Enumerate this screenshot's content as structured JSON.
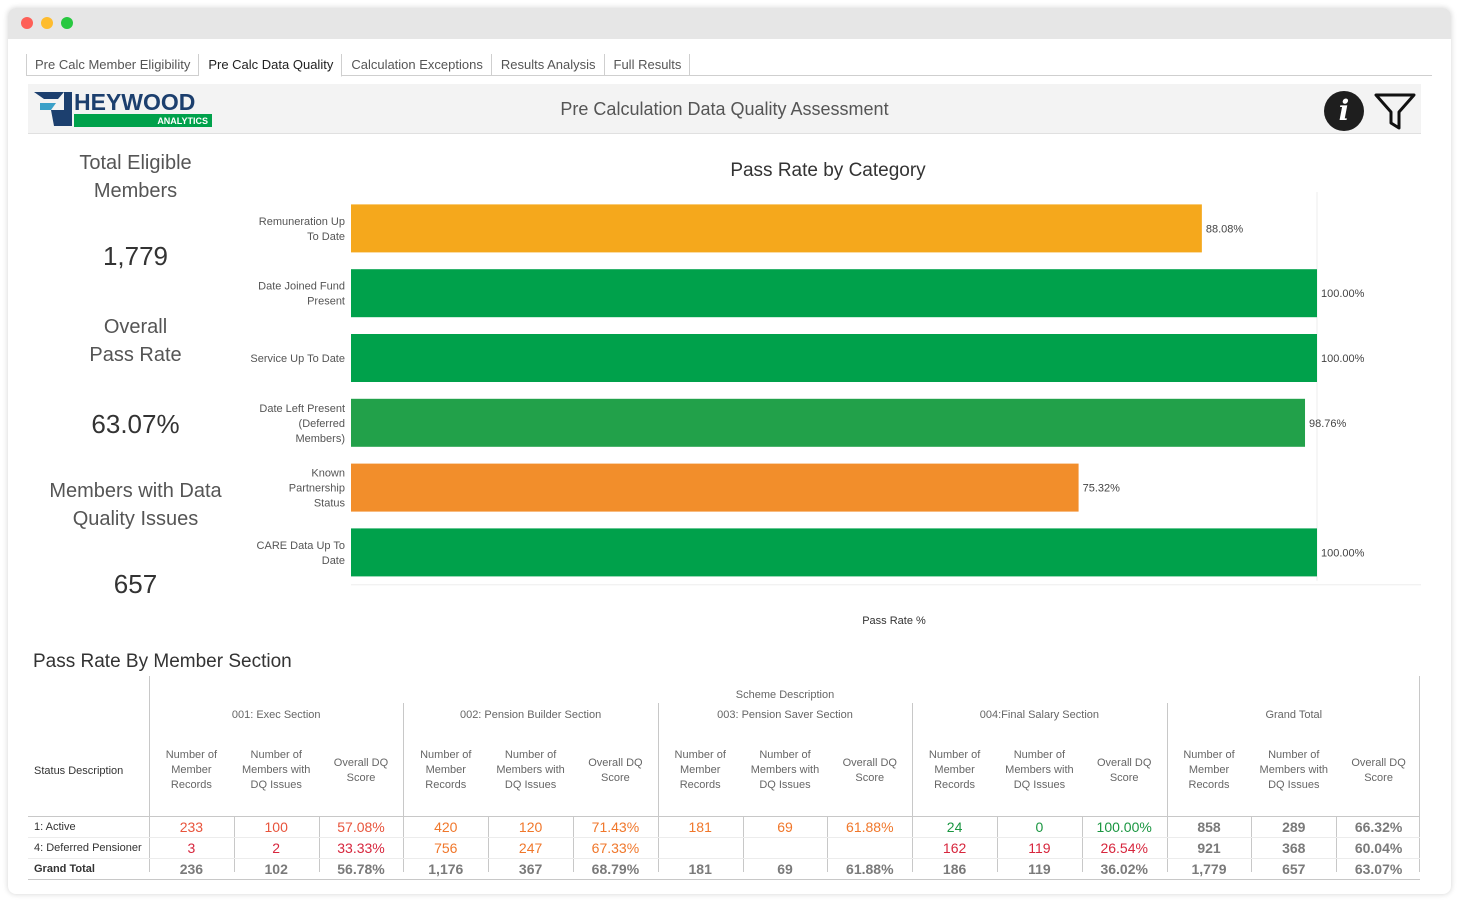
{
  "tabs": [
    {
      "label": "Pre Calc Member Eligibility",
      "active": false
    },
    {
      "label": "Pre Calc Data Quality",
      "active": true
    },
    {
      "label": "Calculation Exceptions",
      "active": false
    },
    {
      "label": "Results Analysis",
      "active": false
    },
    {
      "label": "Full Results",
      "active": false
    }
  ],
  "header": {
    "title": "Pre Calculation Data Quality Assessment",
    "logo_text": "HEYWOOD",
    "logo_subtext": "ANALYTICS",
    "info_glyph": "i"
  },
  "kpis": {
    "eligible_label_1": "Total Eligible",
    "eligible_label_2": "Members",
    "eligible_value": "1,779",
    "pass_label_1": "Overall",
    "pass_label_2": "Pass Rate",
    "pass_value": "63.07%",
    "issues_label_1": "Members with Data",
    "issues_label_2": "Quality Issues",
    "issues_value": "657"
  },
  "chart_data": {
    "type": "bar",
    "orientation": "horizontal",
    "title": "Pass Rate by Category",
    "xlabel": "Pass Rate %",
    "ylabel": "",
    "xlim": [
      0,
      100
    ],
    "categories": [
      [
        "Remuneration Up",
        "To Date"
      ],
      [
        "Date Joined Fund",
        "Present"
      ],
      [
        "Service Up To Date"
      ],
      [
        "Date Left Present",
        "(Deferred",
        "Members)"
      ],
      [
        "Known",
        "Partnership",
        "Status"
      ],
      [
        "CARE Data Up To",
        "Date"
      ]
    ],
    "values": [
      88.08,
      100.0,
      100.0,
      98.76,
      75.32,
      100.0
    ],
    "labels": [
      "88.08%",
      "100.00%",
      "100.00%",
      "98.76%",
      "75.32%",
      "100.00%"
    ],
    "colors": [
      "#f5a81c",
      "#00a14b",
      "#00a14b",
      "#22a14a",
      "#f28e2b",
      "#00a14b"
    ]
  },
  "table": {
    "title": "Pass Rate By Member Section",
    "scheme_header": "Scheme Description",
    "row_header": "Status Description",
    "sections": [
      "001: Exec Section",
      "002: Pension Builder Section",
      "003: Pension Saver Section",
      "004:Final Salary Section",
      "Grand Total"
    ],
    "measures": [
      [
        "Number of",
        "Member",
        "Records"
      ],
      [
        "Number of",
        "Members with",
        "DQ Issues"
      ],
      [
        "Overall DQ",
        "Score"
      ]
    ],
    "rows": [
      {
        "label": "1: Active",
        "values": [
          "233",
          "100",
          "57.08%",
          "420",
          "120",
          "71.43%",
          "181",
          "69",
          "61.88%",
          "24",
          "0",
          "100.00%",
          "858",
          "289",
          "66.32%"
        ],
        "colors": [
          "#e8543c",
          "#e8543c",
          "#e8543c",
          "#f0772b",
          "#f0772b",
          "#f0772b",
          "#f0772b",
          "#f0772b",
          "#f0772b",
          "#1a9641",
          "#1a9641",
          "#1a9641",
          "#888888",
          "#888888",
          "#888888"
        ]
      },
      {
        "label": "4: Deferred Pensioner",
        "values": [
          "3",
          "2",
          "33.33%",
          "756",
          "247",
          "67.33%",
          "",
          "",
          "",
          "162",
          "119",
          "26.54%",
          "921",
          "368",
          "60.04%"
        ],
        "colors": [
          "#d7263d",
          "#d7263d",
          "#d7263d",
          "#f0772b",
          "#f0772b",
          "#f0772b",
          "#888888",
          "#888888",
          "#888888",
          "#d7263d",
          "#d7263d",
          "#d7263d",
          "#888888",
          "#888888",
          "#888888"
        ]
      },
      {
        "label": "Grand Total",
        "values": [
          "236",
          "102",
          "56.78%",
          "1,176",
          "367",
          "68.79%",
          "181",
          "69",
          "61.88%",
          "186",
          "119",
          "36.02%",
          "1,779",
          "657",
          "63.07%"
        ],
        "colors": [
          "#888888",
          "#888888",
          "#888888",
          "#888888",
          "#888888",
          "#888888",
          "#888888",
          "#888888",
          "#888888",
          "#888888",
          "#888888",
          "#888888",
          "#888888",
          "#888888",
          "#888888"
        ]
      }
    ]
  }
}
